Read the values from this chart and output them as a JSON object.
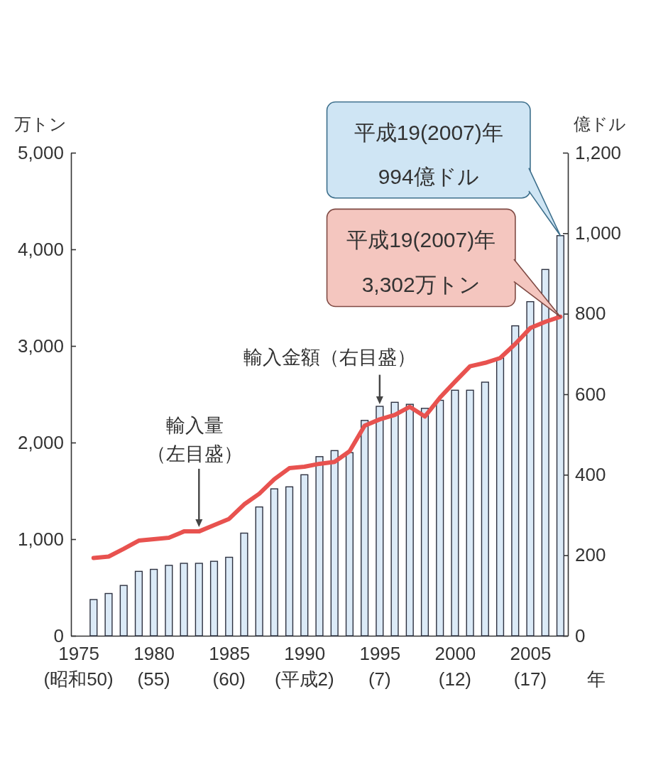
{
  "chart_data": {
    "type": "bar",
    "xlabel": "年",
    "ylabel": "万トン",
    "y2label": "億ドル",
    "x": [
      1976,
      1977,
      1978,
      1979,
      1980,
      1981,
      1982,
      1983,
      1984,
      1985,
      1986,
      1987,
      1988,
      1989,
      1990,
      1991,
      1992,
      1993,
      1994,
      1995,
      1996,
      1997,
      1998,
      1999,
      2000,
      2001,
      2002,
      2003,
      2004,
      2005,
      2006,
      2007
    ],
    "xlim": [
      1974.5,
      2007.5
    ],
    "xticks": [
      1975,
      1980,
      1985,
      1990,
      1995,
      2000,
      2005
    ],
    "ylim": [
      0,
      5000
    ],
    "yticks": [
      0,
      {
        "value": 1000,
        "label": "1,000"
      },
      {
        "value": 2000,
        "label": "2,000"
      },
      {
        "value": 3000,
        "label": "3,000"
      },
      {
        "value": 4000,
        "label": "4,000"
      },
      {
        "value": 5000,
        "label": "5,000"
      }
    ],
    "y2lim": [
      0,
      1200
    ],
    "y2ticks": [
      0,
      200,
      400,
      600,
      800,
      {
        "value": 1000,
        "label": "1,000"
      },
      {
        "value": 1200,
        "label": "1,200"
      }
    ],
    "series": [
      {
        "axis": "y2",
        "name": "輸入金額（右目盛）",
        "color": "#dbeaf7",
        "values": [
          90,
          105,
          125,
          160,
          165,
          175,
          180,
          180,
          185,
          195,
          255,
          320,
          365,
          370,
          400,
          445,
          460,
          455,
          535,
          570,
          580,
          575,
          565,
          585,
          610,
          610,
          630,
          690,
          770,
          830,
          910,
          994
        ]
      },
      {
        "type": "line",
        "name": "輸入量（左目盛）",
        "color": "#e8524f",
        "values": [
          805,
          820,
          900,
          985,
          1000,
          1015,
          1080,
          1080,
          1145,
          1210,
          1360,
          1470,
          1620,
          1735,
          1750,
          1780,
          1800,
          1910,
          2175,
          2240,
          2285,
          2370,
          2270,
          2465,
          2630,
          2790,
          2825,
          2875,
          3020,
          3185,
          3250,
          3302
        ]
      }
    ],
    "annotations": [
      "平成19(2007)年\n994億ドル",
      "平成19(2007)年\n3,302万トン",
      "(昭和50)",
      "(55)",
      "(60)",
      "(平成2)",
      "(7)",
      "(12)",
      "(17)"
    ]
  }
}
